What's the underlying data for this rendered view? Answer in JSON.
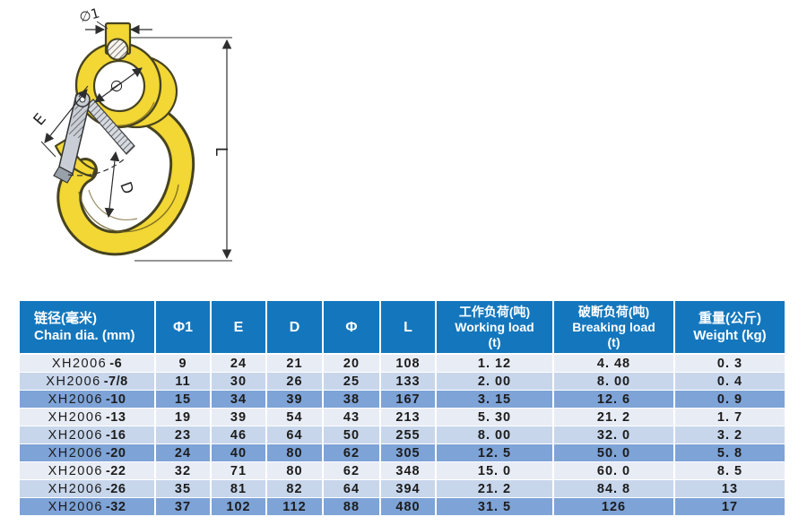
{
  "diagram": {
    "labels": {
      "top_dia": "∅1",
      "eye_dia": "∅",
      "latch_dim": "E",
      "throat_dim": "D",
      "length_dim": "L"
    },
    "colors": {
      "hook_yellow": "#F2D735",
      "outline": "#474320",
      "latch_gray": "#C9CED6",
      "dimension": "#2e2e2e"
    }
  },
  "table": {
    "colors": {
      "header_bg": "#1477BD",
      "header_text": "#FFFFFF",
      "row_pale": "#E8ECF5",
      "row_light": "#C7D6EB",
      "row_medium": "#7EA3D7",
      "grid": "#FFFFFF",
      "cell_text": "#1C1C1C"
    },
    "columns": [
      {
        "id": "model",
        "lines": [
          "链径(毫米)",
          "Chain dia. (mm)"
        ]
      },
      {
        "id": "phi1",
        "lines": [
          "Φ1"
        ]
      },
      {
        "id": "e",
        "lines": [
          "E"
        ]
      },
      {
        "id": "d",
        "lines": [
          "D"
        ]
      },
      {
        "id": "phi",
        "lines": [
          "Φ"
        ]
      },
      {
        "id": "l",
        "lines": [
          "L"
        ]
      },
      {
        "id": "working",
        "lines": [
          "工作负荷(吨)",
          "Working load",
          "(t)"
        ]
      },
      {
        "id": "breaking",
        "lines": [
          "破断负荷(吨)",
          "Breaking load",
          "(t)"
        ]
      },
      {
        "id": "weight",
        "lines": [
          "重量(公斤)",
          "Weight (kg)"
        ]
      }
    ],
    "rows": [
      {
        "model_base": "XH2006",
        "model_suffix": "-6",
        "tone": "pale",
        "cells": [
          "9",
          "24",
          "21",
          "20",
          "108",
          "1. 12",
          "4. 48",
          "0. 3"
        ]
      },
      {
        "model_base": "XH2006",
        "model_suffix": "-7/8",
        "tone": "light",
        "cells": [
          "11",
          "30",
          "26",
          "25",
          "133",
          "2. 00",
          "8. 00",
          "0. 4"
        ]
      },
      {
        "model_base": "XH2006",
        "model_suffix": "-10",
        "tone": "medium",
        "cells": [
          "15",
          "34",
          "39",
          "38",
          "167",
          "3. 15",
          "12. 6",
          "0. 9"
        ]
      },
      {
        "model_base": "XH2006",
        "model_suffix": "-13",
        "tone": "pale",
        "cells": [
          "19",
          "39",
          "54",
          "43",
          "213",
          "5. 30",
          "21. 2",
          "1. 7"
        ]
      },
      {
        "model_base": "XH2006",
        "model_suffix": "-16",
        "tone": "light",
        "cells": [
          "23",
          "46",
          "64",
          "50",
          "255",
          "8. 00",
          "32. 0",
          "3. 2"
        ]
      },
      {
        "model_base": "XH2006",
        "model_suffix": "-20",
        "tone": "medium",
        "cells": [
          "24",
          "40",
          "80",
          "62",
          "305",
          "12. 5",
          "50. 0",
          "5. 8"
        ]
      },
      {
        "model_base": "XH2006",
        "model_suffix": "-22",
        "tone": "pale",
        "cells": [
          "32",
          "71",
          "80",
          "62",
          "348",
          "15. 0",
          "60. 0",
          "8. 5"
        ]
      },
      {
        "model_base": "XH2006",
        "model_suffix": "-26",
        "tone": "light",
        "cells": [
          "35",
          "81",
          "82",
          "64",
          "394",
          "21. 2",
          "84. 8",
          "13"
        ]
      },
      {
        "model_base": "XH2006",
        "model_suffix": "-32",
        "tone": "medium",
        "cells": [
          "37",
          "102",
          "112",
          "88",
          "480",
          "31. 5",
          "126",
          "17"
        ]
      }
    ]
  }
}
